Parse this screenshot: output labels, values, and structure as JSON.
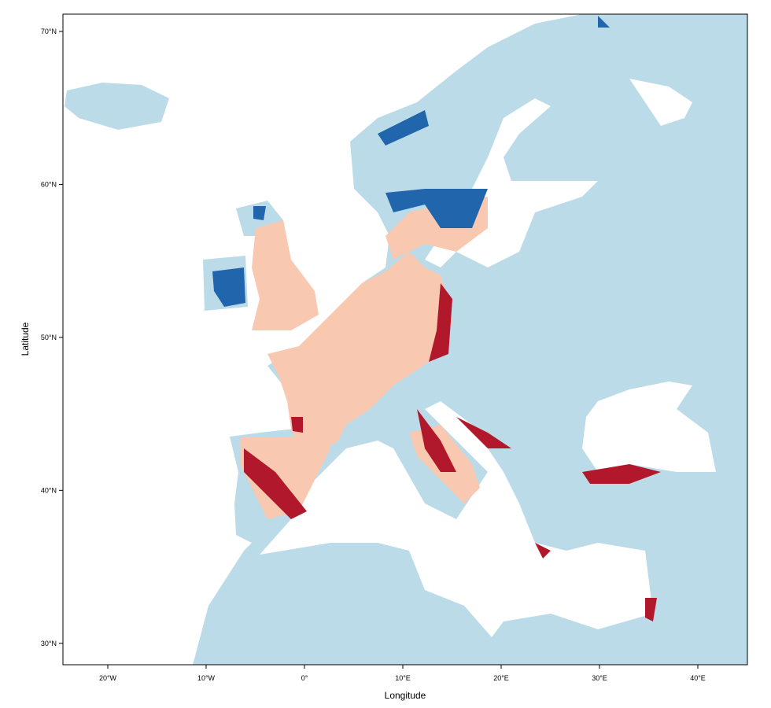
{
  "chart_data": {
    "type": "map",
    "xlabel": "Longitude",
    "ylabel": "Latitude",
    "xlim": [
      -24.56,
      45.04
    ],
    "ylim": [
      28.6,
      71.13
    ],
    "xticks": [
      {
        "value": -20,
        "label": "20°W"
      },
      {
        "value": -10,
        "label": "10°W"
      },
      {
        "value": 0,
        "label": "0°"
      },
      {
        "value": 10,
        "label": "10°E"
      },
      {
        "value": 20,
        "label": "20°E"
      },
      {
        "value": 30,
        "label": "30°E"
      },
      {
        "value": 40,
        "label": "40°E"
      }
    ],
    "yticks": [
      {
        "value": 30,
        "label": "30°N"
      },
      {
        "value": 40,
        "label": "40°N"
      },
      {
        "value": 50,
        "label": "50°N"
      },
      {
        "value": 60,
        "label": "60°N"
      },
      {
        "value": 70,
        "label": "70°N"
      }
    ]
  }
}
